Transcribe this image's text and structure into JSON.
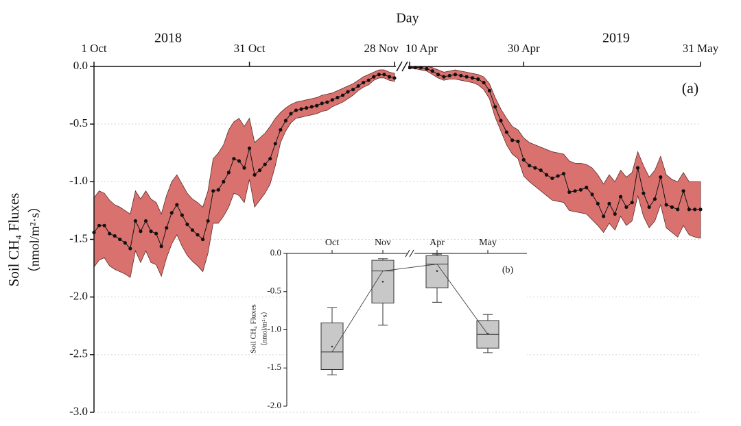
{
  "chart_data": [
    {
      "type": "line",
      "x_label": "Day",
      "y_label": [
        "Soil CH₄ Fluxes",
        "（nmol/m²·s）"
      ],
      "annotations": [
        "2018",
        "2019",
        "(a)"
      ],
      "x": [
        "1 Oct",
        null,
        null,
        null,
        null,
        null,
        null,
        null,
        null,
        null,
        null,
        null,
        null,
        null,
        null,
        null,
        null,
        null,
        null,
        null,
        null,
        null,
        null,
        null,
        null,
        null,
        null,
        null,
        null,
        null,
        "31 Oct",
        null,
        null,
        null,
        null,
        null,
        null,
        null,
        null,
        null,
        null,
        null,
        null,
        null,
        null,
        null,
        null,
        null,
        null,
        null,
        null,
        null,
        null,
        null,
        null,
        null,
        null,
        null,
        "28 Nov",
        "10 Apr",
        null,
        null,
        null,
        null,
        null,
        null,
        null,
        null,
        null,
        null,
        null,
        null,
        null,
        null,
        null,
        null,
        null,
        null,
        null,
        "30 Apr",
        null,
        null,
        null,
        null,
        null,
        null,
        null,
        null,
        null,
        null,
        null,
        null,
        null,
        null,
        null,
        null,
        null,
        null,
        null,
        null,
        null,
        null,
        null,
        null,
        null,
        null,
        null,
        null,
        null,
        null,
        "31 May"
      ],
      "axis_break_after": 58,
      "values": [
        -1.44,
        -1.38,
        -1.38,
        -1.45,
        -1.47,
        -1.5,
        -1.53,
        -1.58,
        -1.34,
        -1.43,
        -1.34,
        -1.43,
        -1.45,
        -1.56,
        -1.4,
        -1.27,
        -1.2,
        -1.29,
        -1.37,
        -1.42,
        -1.46,
        -1.5,
        -1.34,
        -1.08,
        -1.07,
        -1.0,
        -0.92,
        -0.8,
        -0.82,
        -0.88,
        -0.71,
        -0.94,
        -0.9,
        -0.85,
        -0.8,
        -0.67,
        -0.55,
        -0.47,
        -0.41,
        -0.38,
        -0.37,
        -0.36,
        -0.35,
        -0.34,
        -0.32,
        -0.31,
        -0.29,
        -0.27,
        -0.25,
        -0.22,
        -0.2,
        -0.17,
        -0.14,
        -0.12,
        -0.09,
        -0.07,
        -0.07,
        -0.09,
        -0.1,
        -0.01,
        -0.01,
        -0.01,
        -0.02,
        -0.04,
        -0.07,
        -0.09,
        -0.08,
        -0.07,
        -0.08,
        -0.09,
        -0.1,
        -0.11,
        -0.14,
        -0.21,
        -0.35,
        -0.47,
        -0.57,
        -0.64,
        -0.65,
        -0.81,
        -0.86,
        -0.88,
        -0.9,
        -0.94,
        -0.97,
        -0.95,
        -0.93,
        -1.09,
        -1.08,
        -1.07,
        -1.05,
        -1.11,
        -1.19,
        -1.3,
        -1.19,
        -1.28,
        -1.13,
        -1.22,
        -1.18,
        -0.88,
        -1.1,
        -1.22,
        -1.15,
        -0.96,
        -1.2,
        -1.22,
        -1.24,
        -1.08,
        -1.24,
        -1.24,
        -1.24
      ],
      "upper": [
        -1.14,
        -1.08,
        -1.1,
        -1.16,
        -1.2,
        -1.22,
        -1.25,
        -1.28,
        -1.08,
        -1.15,
        -1.08,
        -1.15,
        -1.18,
        -1.28,
        -1.12,
        -1.0,
        -0.94,
        -1.02,
        -1.1,
        -1.15,
        -1.18,
        -1.22,
        -1.08,
        -0.8,
        -0.75,
        -0.68,
        -0.55,
        -0.48,
        -0.45,
        -0.52,
        -0.45,
        -0.66,
        -0.62,
        -0.58,
        -0.52,
        -0.45,
        -0.4,
        -0.36,
        -0.33,
        -0.31,
        -0.3,
        -0.29,
        -0.28,
        -0.27,
        -0.25,
        -0.24,
        -0.23,
        -0.21,
        -0.19,
        -0.17,
        -0.15,
        -0.12,
        -0.09,
        -0.07,
        -0.05,
        -0.03,
        -0.03,
        -0.05,
        -0.06,
        0,
        0,
        0,
        0,
        -0.01,
        -0.03,
        -0.05,
        -0.04,
        -0.03,
        -0.04,
        -0.05,
        -0.06,
        -0.07,
        -0.09,
        -0.15,
        -0.27,
        -0.37,
        -0.45,
        -0.52,
        -0.55,
        -0.62,
        -0.66,
        -0.68,
        -0.7,
        -0.72,
        -0.74,
        -0.75,
        -0.76,
        -0.82,
        -0.84,
        -0.84,
        -0.85,
        -0.88,
        -0.94,
        -1.02,
        -0.94,
        -1.0,
        -0.9,
        -0.96,
        -0.92,
        -0.74,
        -0.86,
        -0.96,
        -0.9,
        -0.78,
        -0.94,
        -0.98,
        -1.0,
        -0.92,
        -1.0,
        -1.0,
        -1.0
      ],
      "lower": [
        -1.74,
        -1.68,
        -1.66,
        -1.73,
        -1.76,
        -1.78,
        -1.8,
        -1.83,
        -1.6,
        -1.7,
        -1.6,
        -1.7,
        -1.72,
        -1.82,
        -1.66,
        -1.54,
        -1.46,
        -1.56,
        -1.64,
        -1.69,
        -1.73,
        -1.78,
        -1.62,
        -1.36,
        -1.36,
        -1.3,
        -1.22,
        -1.1,
        -1.12,
        -1.18,
        -0.98,
        -1.22,
        -1.16,
        -1.1,
        -1.02,
        -0.86,
        -0.66,
        -0.56,
        -0.49,
        -0.45,
        -0.44,
        -0.43,
        -0.42,
        -0.41,
        -0.39,
        -0.38,
        -0.35,
        -0.33,
        -0.31,
        -0.28,
        -0.25,
        -0.21,
        -0.18,
        -0.16,
        -0.12,
        -0.1,
        -0.1,
        -0.12,
        -0.13,
        -0.02,
        -0.02,
        -0.03,
        -0.04,
        -0.07,
        -0.1,
        -0.12,
        -0.11,
        -0.11,
        -0.12,
        -0.13,
        -0.14,
        -0.16,
        -0.2,
        -0.28,
        -0.44,
        -0.56,
        -0.68,
        -0.76,
        -0.8,
        -0.95,
        -1.0,
        -1.04,
        -1.08,
        -1.12,
        -1.16,
        -1.17,
        -1.18,
        -1.25,
        -1.26,
        -1.27,
        -1.28,
        -1.33,
        -1.38,
        -1.44,
        -1.36,
        -1.42,
        -1.3,
        -1.38,
        -1.34,
        -1.12,
        -1.3,
        -1.4,
        -1.34,
        -1.2,
        -1.4,
        -1.44,
        -1.48,
        -1.38,
        -1.46,
        -1.48,
        -1.49
      ],
      "color": "#111111",
      "band_color": "#d9726f",
      "ylim": [
        -3.0,
        0.0
      ],
      "yticks": [
        {
          "value": 0,
          "label": "0.0"
        },
        -0.5,
        {
          "value": -1,
          "label": "-1.0"
        },
        -1.5,
        {
          "value": -2,
          "label": "-2.0"
        },
        -2.5,
        {
          "value": -3,
          "label": "-3.0"
        }
      ],
      "grid": true
    },
    {
      "type": "box",
      "y_label": [
        "Soil CH₄ Fluxes",
        "（nmol/m²·s）"
      ],
      "annotations": [
        "(b)"
      ],
      "categories": [
        "Oct",
        "Nov",
        "Apr",
        "May"
      ],
      "axis_break_after": 1,
      "boxes": [
        {
          "min": -1.59,
          "q1": -1.52,
          "median": -1.29,
          "q3": -0.91,
          "max": -0.71,
          "mean": -1.22
        },
        {
          "min": -0.94,
          "q1": -0.65,
          "median": -0.23,
          "q3": -0.09,
          "max": -0.07,
          "mean": -0.37
        },
        {
          "min": -0.64,
          "q1": -0.45,
          "median": -0.14,
          "q3": -0.03,
          "max": -0.01,
          "mean": -0.23
        },
        {
          "min": -1.3,
          "q1": -1.24,
          "median": -1.06,
          "q3": -0.88,
          "max": -0.8,
          "mean": -1.05
        }
      ],
      "color": "#c8c8c8",
      "ylim": [
        -2.0,
        0.0
      ],
      "yticks": [
        {
          "value": 0,
          "label": "0.0"
        },
        -0.5,
        {
          "value": -1,
          "label": "-1.0"
        },
        -1.5,
        {
          "value": -2,
          "label": "-2.0"
        }
      ]
    }
  ]
}
